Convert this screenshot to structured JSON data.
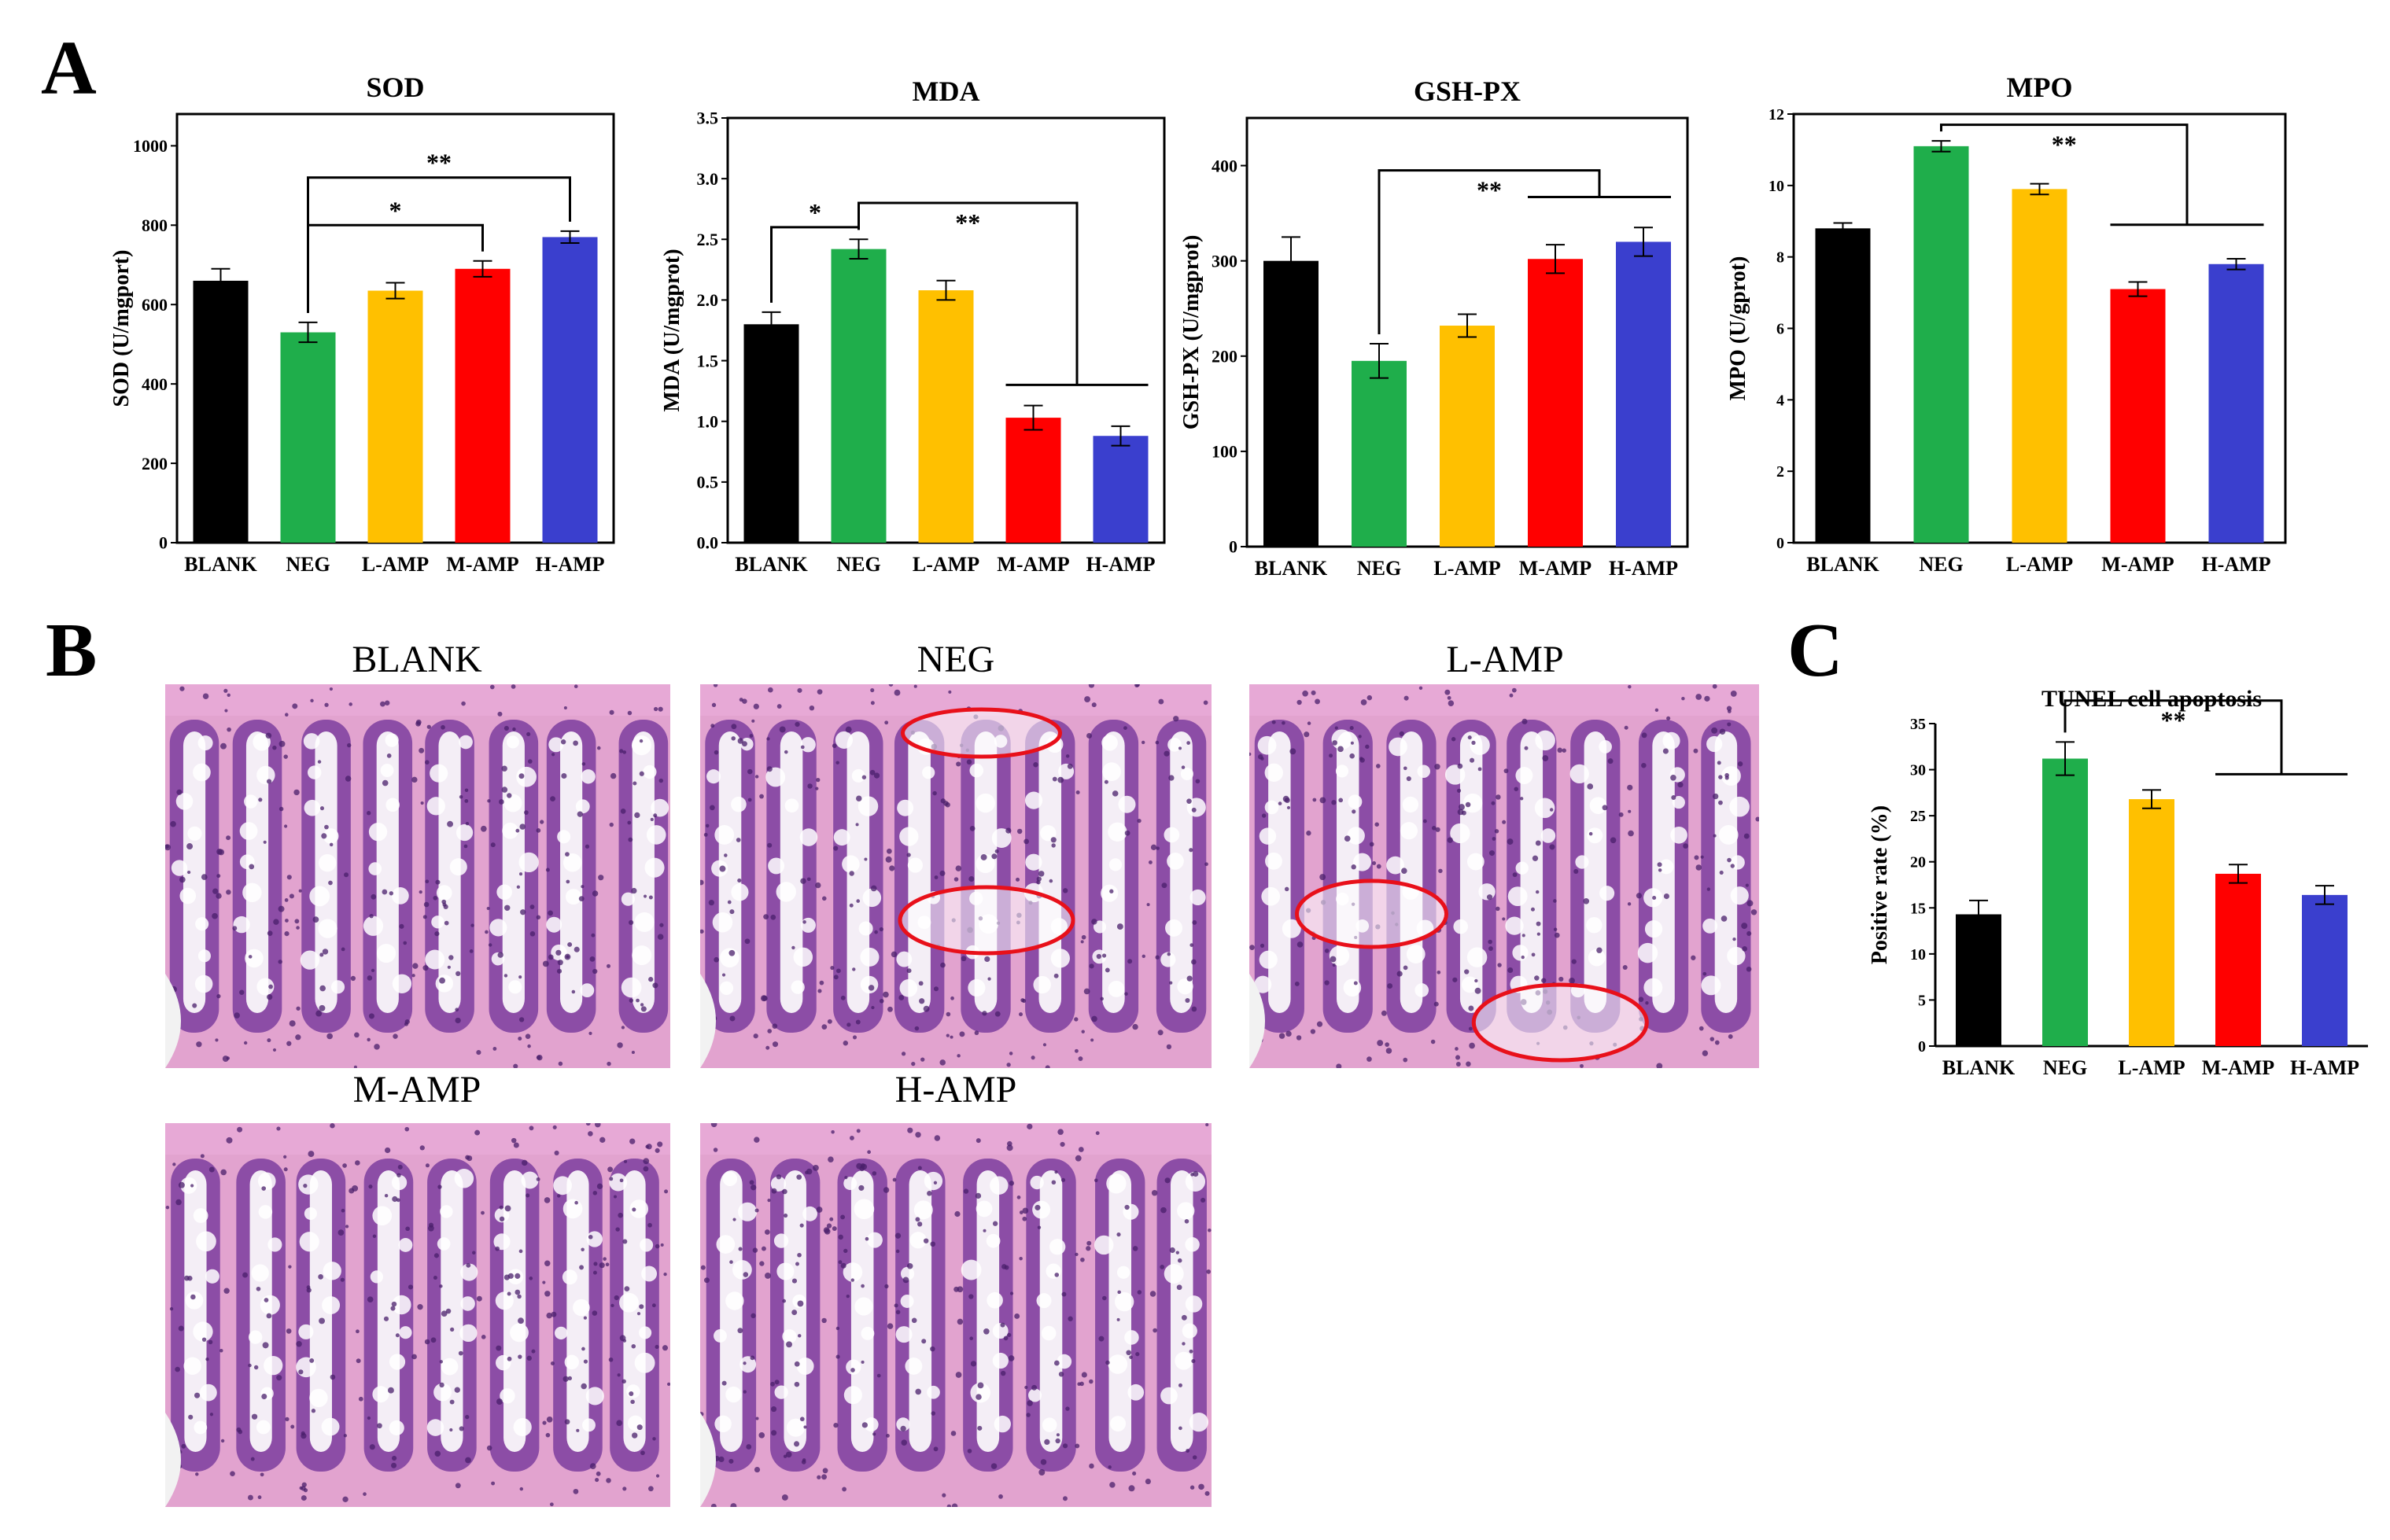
{
  "panels": {
    "a": "A",
    "b": "B",
    "c": "C"
  },
  "group_colors": [
    "#000000",
    "#1fae4b",
    "#ffc000",
    "#ff0000",
    "#3a3fce"
  ],
  "chart_data": [
    {
      "type": "bar",
      "title": "SOD",
      "ylabel": "SOD (U/mgport)",
      "categories": [
        "BLANK",
        "NEG",
        "L-AMP",
        "M-AMP",
        "H-AMP"
      ],
      "values": [
        660,
        530,
        635,
        690,
        770
      ],
      "errors": [
        30,
        25,
        20,
        20,
        15
      ],
      "ylim": [
        0,
        1080
      ],
      "yticks": [
        0,
        200,
        400,
        600,
        800,
        1000
      ],
      "ytick_labels": [
        "0",
        "200",
        "400",
        "600",
        "800",
        "1000"
      ],
      "significance": [
        {
          "label": "*",
          "from": 1,
          "to": 3,
          "y": 800
        },
        {
          "label": "**",
          "from": 1,
          "to": 4,
          "y": 920
        }
      ]
    },
    {
      "type": "bar",
      "title": "MDA",
      "ylabel": "MDA (U/mgprot)",
      "categories": [
        "BLANK",
        "NEG",
        "L-AMP",
        "M-AMP",
        "H-AMP"
      ],
      "values": [
        1.8,
        2.42,
        2.08,
        1.03,
        0.88
      ],
      "errors": [
        0.1,
        0.08,
        0.08,
        0.1,
        0.08
      ],
      "ylim": [
        0,
        3.5
      ],
      "yticks": [
        0,
        0.5,
        1.0,
        1.5,
        2.0,
        2.5,
        3.0,
        3.5
      ],
      "ytick_labels": [
        "0.0",
        "0.5",
        "1.0",
        "1.5",
        "2.0",
        "2.5",
        "3.0",
        "3.5"
      ],
      "significance": [
        {
          "label": "*",
          "from": 0,
          "to": 1,
          "y": 2.6
        },
        {
          "label": "**",
          "from": 1,
          "to_range": [
            3,
            4
          ],
          "y": 2.8,
          "group_y": 1.3
        }
      ]
    },
    {
      "type": "bar",
      "title": "GSH-PX",
      "ylabel": "GSH-PX  (U/mgprot)",
      "categories": [
        "BLANK",
        "NEG",
        "L-AMP",
        "M-AMP",
        "H-AMP"
      ],
      "values": [
        300,
        195,
        232,
        302,
        320
      ],
      "errors": [
        25,
        18,
        12,
        15,
        15
      ],
      "ylim": [
        0,
        450
      ],
      "yticks": [
        0,
        100,
        200,
        300,
        400
      ],
      "ytick_labels": [
        "0",
        "100",
        "200",
        "300",
        "400"
      ],
      "significance": [
        {
          "label": "**",
          "from": 1,
          "to_range": [
            3,
            4
          ],
          "y": 395,
          "group_y": 367
        }
      ]
    },
    {
      "type": "bar",
      "title": "MPO",
      "ylabel": "MPO (U/gprot)",
      "categories": [
        "BLANK",
        "NEG",
        "L-AMP",
        "M-AMP",
        "H-AMP"
      ],
      "values": [
        8.8,
        11.1,
        9.9,
        7.1,
        7.8
      ],
      "errors": [
        0.15,
        0.15,
        0.15,
        0.2,
        0.15
      ],
      "ylim": [
        0,
        12
      ],
      "yticks": [
        0,
        2,
        4,
        6,
        8,
        10,
        12
      ],
      "ytick_labels": [
        "0",
        "2",
        "4",
        "6",
        "8",
        "10",
        "12"
      ],
      "significance": [
        {
          "label": "**",
          "from": 1,
          "to_range": [
            3,
            4
          ],
          "y": 11.7,
          "group_y": 8.9
        }
      ]
    },
    {
      "type": "bar",
      "title": "TUNEL cell apoptosis",
      "ylabel": "Positive rate (%)",
      "categories": [
        "BLANK",
        "NEG",
        "L-AMP",
        "M-AMP",
        "H-AMP"
      ],
      "values": [
        14.3,
        31.2,
        26.8,
        18.7,
        16.4
      ],
      "errors": [
        1.5,
        1.8,
        1.0,
        1.0,
        1.0
      ],
      "ylim": [
        0,
        35
      ],
      "yticks": [
        0,
        5,
        10,
        15,
        20,
        25,
        30,
        35
      ],
      "ytick_labels": [
        "0",
        "5",
        "10",
        "15",
        "20",
        "25",
        "30",
        "35"
      ],
      "significance": [
        {
          "label": "**",
          "from": 1,
          "to_range": [
            3,
            4
          ],
          "y": 37.5,
          "group_y": 29.5
        }
      ]
    }
  ],
  "micrographs": [
    {
      "label": "BLANK",
      "pattern": "normal"
    },
    {
      "label": "NEG",
      "pattern": "damaged"
    },
    {
      "label": "L-AMP",
      "pattern": "damaged"
    },
    {
      "label": "M-AMP",
      "pattern": "normal"
    },
    {
      "label": "H-AMP",
      "pattern": "normal"
    }
  ]
}
